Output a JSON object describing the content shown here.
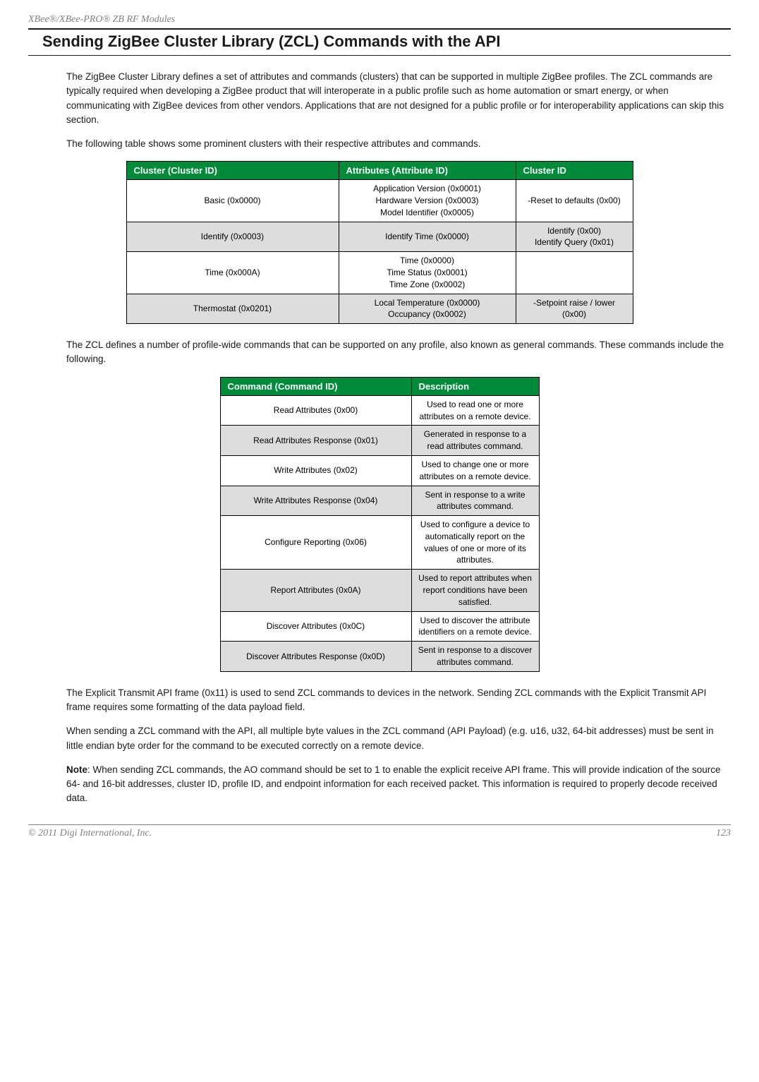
{
  "header": {
    "product_line": "XBee®/XBee-PRO® ZB RF Modules"
  },
  "section": {
    "title": "Sending ZigBee Cluster Library (ZCL) Commands with the API"
  },
  "paragraphs": {
    "p1": "The ZigBee Cluster Library defines a set of attributes and commands (clusters) that can be supported in multiple ZigBee profiles. The ZCL commands are typically required when developing a ZigBee product that will interoperate in a public profile such as home automation or smart energy, or when communicating with ZigBee devices from other vendors. Applications that are not designed for a public profile or for interoperability applications can skip this section.",
    "p2": "The following table shows some prominent clusters with their respective attributes and commands.",
    "p3": "The ZCL defines a number of profile-wide commands that can be supported on any profile, also known as general commands. These commands include the following.",
    "p4": "The Explicit Transmit API frame (0x11) is used to send ZCL commands to devices in the network. Sending ZCL commands with the Explicit Transmit API frame requires some formatting of the data payload field.",
    "p5": "When sending a ZCL command with the API, all multiple byte values in the ZCL command (API Payload) (e.g. u16, u32, 64-bit addresses) must be sent in little endian byte order for the command to be executed correctly on a remote device.",
    "note_label": "Note",
    "note_text": ": When sending ZCL commands, the AO command should be set to 1 to enable the explicit receive API frame. This will provide indication of the source 64- and 16-bit addresses, cluster ID, profile ID, and endpoint information for each received packet. This information is required to properly decode received data."
  },
  "table1": {
    "header_bg": "#008b3a",
    "header_fg": "#ffffff",
    "row_alt_bg": "#dddddd",
    "columns": [
      "Cluster (Cluster ID)",
      "Attributes (Attribute ID)",
      "Cluster ID"
    ],
    "rows": [
      {
        "cluster": "Basic (0x0000)",
        "attributes": "Application Version (0x0001)\nHardware Version (0x0003)\nModel Identifier (0x0005)",
        "cmd": "-Reset to defaults (0x00)"
      },
      {
        "cluster": "Identify (0x0003)",
        "attributes": "Identify Time (0x0000)",
        "cmd": "Identify (0x00)\nIdentify Query (0x01)"
      },
      {
        "cluster": "Time (0x000A)",
        "attributes": "Time (0x0000)\nTime Status (0x0001)\nTime Zone (0x0002)",
        "cmd": ""
      },
      {
        "cluster": "Thermostat (0x0201)",
        "attributes": "Local Temperature (0x0000)\nOccupancy (0x0002)",
        "cmd": "-Setpoint raise / lower (0x00)"
      }
    ]
  },
  "table2": {
    "columns": [
      "Command (Command ID)",
      "Description"
    ],
    "rows": [
      {
        "cmd": "Read Attributes (0x00)",
        "desc": "Used to read one or more attributes on a remote device."
      },
      {
        "cmd": "Read Attributes Response (0x01)",
        "desc": "Generated in response to a read attributes command."
      },
      {
        "cmd": "Write Attributes (0x02)",
        "desc": "Used to change one or more attributes on a remote device."
      },
      {
        "cmd": "Write Attributes Response (0x04)",
        "desc": "Sent in response to a write attributes command."
      },
      {
        "cmd": "Configure Reporting (0x06)",
        "desc": "Used to configure a device to automatically report on the values of one or more of its attributes."
      },
      {
        "cmd": "Report Attributes (0x0A)",
        "desc": "Used to report attributes when report conditions have been satisfied."
      },
      {
        "cmd": "Discover Attributes (0x0C)",
        "desc": "Used to discover the attribute identifiers on a remote device."
      },
      {
        "cmd": "Discover Attributes Response (0x0D)",
        "desc": "Sent in response to a discover attributes command."
      }
    ]
  },
  "footer": {
    "copyright": "© 2011 Digi International, Inc.",
    "page_number": "123"
  }
}
